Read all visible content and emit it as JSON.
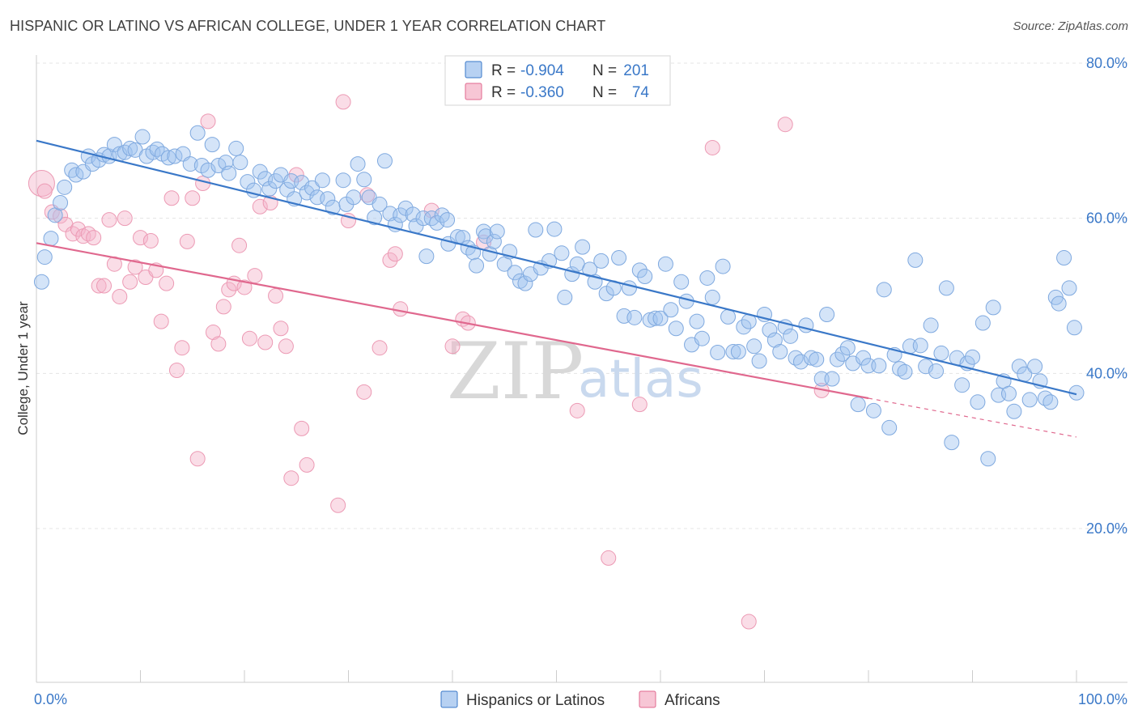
{
  "title": "HISPANIC OR LATINO VS AFRICAN COLLEGE, UNDER 1 YEAR CORRELATION CHART",
  "source": "Source: ZipAtlas.com",
  "watermark": {
    "part1": "ZIP",
    "part2": "atlas"
  },
  "legend": {
    "series1": {
      "r_label": "R =",
      "r_value": "-0.904",
      "n_label": "N =",
      "n_value": "201"
    },
    "series2": {
      "r_label": "R =",
      "r_value": "-0.360",
      "n_label": "N =",
      "n_value": "74"
    }
  },
  "bottom_legend": {
    "series1": "Hispanics or Latinos",
    "series2": "Africans"
  },
  "chart_data": {
    "type": "scatter",
    "title": "HISPANIC OR LATINO VS AFRICAN COLLEGE, UNDER 1 YEAR CORRELATION CHART",
    "xlabel": "",
    "ylabel": "College, Under 1 year",
    "xlim": [
      0,
      100
    ],
    "ylim": [
      0,
      82
    ],
    "x_tick_labels": [
      "0.0%",
      "100.0%"
    ],
    "y_ticks": [
      20,
      40,
      60,
      80
    ],
    "y_tick_labels": [
      "20.0%",
      "40.0%",
      "60.0%",
      "80.0%"
    ],
    "grid": true,
    "colors": {
      "series1": "#3a78c8",
      "series2": "#e0688e",
      "tick": "#3a78c8"
    },
    "series": [
      {
        "name": "Hispanics or Latinos",
        "color": "#3a78c8",
        "r": -0.904,
        "n": 201,
        "trend": {
          "x0": 0,
          "y0": 70.0,
          "x1": 100,
          "y1": 37.3
        },
        "points": [
          [
            0.5,
            51.8
          ],
          [
            0.8,
            55.0
          ],
          [
            1.4,
            57.4
          ],
          [
            1.8,
            60.4
          ],
          [
            2.3,
            62.0
          ],
          [
            2.7,
            64.0
          ],
          [
            3.4,
            66.2
          ],
          [
            3.8,
            65.6
          ],
          [
            4.5,
            66.0
          ],
          [
            5.0,
            68.0
          ],
          [
            5.4,
            67.0
          ],
          [
            6.0,
            67.5
          ],
          [
            6.5,
            68.2
          ],
          [
            7.0,
            68.0
          ],
          [
            7.5,
            69.5
          ],
          [
            8.0,
            68.3
          ],
          [
            8.5,
            68.5
          ],
          [
            9.0,
            69.0
          ],
          [
            9.5,
            68.8
          ],
          [
            10.2,
            70.5
          ],
          [
            10.6,
            68.0
          ],
          [
            11.2,
            68.5
          ],
          [
            11.6,
            68.9
          ],
          [
            12.1,
            68.3
          ],
          [
            12.7,
            67.8
          ],
          [
            13.3,
            68.0
          ],
          [
            14.1,
            68.3
          ],
          [
            14.8,
            67.0
          ],
          [
            15.5,
            71.0
          ],
          [
            15.9,
            66.8
          ],
          [
            16.5,
            66.2
          ],
          [
            16.9,
            69.5
          ],
          [
            17.5,
            66.8
          ],
          [
            18.2,
            67.2
          ],
          [
            18.5,
            65.8
          ],
          [
            19.2,
            69.0
          ],
          [
            19.6,
            67.2
          ],
          [
            20.3,
            64.7
          ],
          [
            20.9,
            63.6
          ],
          [
            21.5,
            66.0
          ],
          [
            22.0,
            65.1
          ],
          [
            22.4,
            63.8
          ],
          [
            23.0,
            64.8
          ],
          [
            23.5,
            65.6
          ],
          [
            24.1,
            63.7
          ],
          [
            24.5,
            64.8
          ],
          [
            24.8,
            62.5
          ],
          [
            25.5,
            64.6
          ],
          [
            26.0,
            63.3
          ],
          [
            26.5,
            63.9
          ],
          [
            27.0,
            62.7
          ],
          [
            27.5,
            64.9
          ],
          [
            28.0,
            62.5
          ],
          [
            28.5,
            61.4
          ],
          [
            29.5,
            64.9
          ],
          [
            29.8,
            61.8
          ],
          [
            30.5,
            62.7
          ],
          [
            30.9,
            67.0
          ],
          [
            31.5,
            65.0
          ],
          [
            32.0,
            62.7
          ],
          [
            32.5,
            60.1
          ],
          [
            33.0,
            61.8
          ],
          [
            33.5,
            67.4
          ],
          [
            34.0,
            60.6
          ],
          [
            34.5,
            59.2
          ],
          [
            35.0,
            60.4
          ],
          [
            35.5,
            61.3
          ],
          [
            36.2,
            60.5
          ],
          [
            36.5,
            59.0
          ],
          [
            37.2,
            60.0
          ],
          [
            38.0,
            60.0
          ],
          [
            37.5,
            55.1
          ],
          [
            38.5,
            59.4
          ],
          [
            39.0,
            60.4
          ],
          [
            39.5,
            59.8
          ],
          [
            39.6,
            56.7
          ],
          [
            40.5,
            57.6
          ],
          [
            41.0,
            57.5
          ],
          [
            41.5,
            56.2
          ],
          [
            42.0,
            55.6
          ],
          [
            42.3,
            53.9
          ],
          [
            43.0,
            58.3
          ],
          [
            43.2,
            57.7
          ],
          [
            43.6,
            55.4
          ],
          [
            44.0,
            57.0
          ],
          [
            44.3,
            58.3
          ],
          [
            45.0,
            54.1
          ],
          [
            45.5,
            55.7
          ],
          [
            46.0,
            53.0
          ],
          [
            46.5,
            51.9
          ],
          [
            47.0,
            51.6
          ],
          [
            47.5,
            52.8
          ],
          [
            48.0,
            58.5
          ],
          [
            48.5,
            53.6
          ],
          [
            49.3,
            54.5
          ],
          [
            49.8,
            58.6
          ],
          [
            50.5,
            55.5
          ],
          [
            50.8,
            49.8
          ],
          [
            51.5,
            52.8
          ],
          [
            52.0,
            54.1
          ],
          [
            52.5,
            56.3
          ],
          [
            53.2,
            53.4
          ],
          [
            53.7,
            51.8
          ],
          [
            54.3,
            54.5
          ],
          [
            54.8,
            50.3
          ],
          [
            55.5,
            51.0
          ],
          [
            56.0,
            54.9
          ],
          [
            56.5,
            47.4
          ],
          [
            57.0,
            51.0
          ],
          [
            57.5,
            47.2
          ],
          [
            58.0,
            53.3
          ],
          [
            58.5,
            52.5
          ],
          [
            59.0,
            46.9
          ],
          [
            59.5,
            47.1
          ],
          [
            60.0,
            47.1
          ],
          [
            60.5,
            54.1
          ],
          [
            61.0,
            48.2
          ],
          [
            61.5,
            45.8
          ],
          [
            62.0,
            51.8
          ],
          [
            62.5,
            49.3
          ],
          [
            63.0,
            43.7
          ],
          [
            63.5,
            46.7
          ],
          [
            64.0,
            44.5
          ],
          [
            64.5,
            52.3
          ],
          [
            65.0,
            49.8
          ],
          [
            65.5,
            42.7
          ],
          [
            66.0,
            53.8
          ],
          [
            66.5,
            47.3
          ],
          [
            67.0,
            42.8
          ],
          [
            67.5,
            42.8
          ],
          [
            68.0,
            46.0
          ],
          [
            68.5,
            46.7
          ],
          [
            69.0,
            43.5
          ],
          [
            69.5,
            41.6
          ],
          [
            70.0,
            47.6
          ],
          [
            70.5,
            45.6
          ],
          [
            71.0,
            44.3
          ],
          [
            71.5,
            42.8
          ],
          [
            72.0,
            46.0
          ],
          [
            72.5,
            44.8
          ],
          [
            73.0,
            42.0
          ],
          [
            73.5,
            41.5
          ],
          [
            74.0,
            46.2
          ],
          [
            74.5,
            42.0
          ],
          [
            75.0,
            41.8
          ],
          [
            75.5,
            39.3
          ],
          [
            76.0,
            47.6
          ],
          [
            76.5,
            39.3
          ],
          [
            77.0,
            41.8
          ],
          [
            77.5,
            42.5
          ],
          [
            78.0,
            43.3
          ],
          [
            78.5,
            41.3
          ],
          [
            79.0,
            36.0
          ],
          [
            79.5,
            42.0
          ],
          [
            80.0,
            41.0
          ],
          [
            80.5,
            35.2
          ],
          [
            81.0,
            41.0
          ],
          [
            81.5,
            50.8
          ],
          [
            82.0,
            33.0
          ],
          [
            82.5,
            42.4
          ],
          [
            83.0,
            40.6
          ],
          [
            83.5,
            40.2
          ],
          [
            84.0,
            43.5
          ],
          [
            84.5,
            54.6
          ],
          [
            85.0,
            43.6
          ],
          [
            85.5,
            40.9
          ],
          [
            86.0,
            46.2
          ],
          [
            86.5,
            40.3
          ],
          [
            87.0,
            42.6
          ],
          [
            87.5,
            51.0
          ],
          [
            88.0,
            31.1
          ],
          [
            88.5,
            42.0
          ],
          [
            89.0,
            38.5
          ],
          [
            89.5,
            41.3
          ],
          [
            90.0,
            42.1
          ],
          [
            90.5,
            36.3
          ],
          [
            91.0,
            46.5
          ],
          [
            91.5,
            29.0
          ],
          [
            92.0,
            48.5
          ],
          [
            92.5,
            37.2
          ],
          [
            93.0,
            39.0
          ],
          [
            93.5,
            37.4
          ],
          [
            94.0,
            35.1
          ],
          [
            94.5,
            40.9
          ],
          [
            95.0,
            39.9
          ],
          [
            95.5,
            36.6
          ],
          [
            96.0,
            40.9
          ],
          [
            96.5,
            39.0
          ],
          [
            97.0,
            36.8
          ],
          [
            97.5,
            36.3
          ],
          [
            98.0,
            49.8
          ],
          [
            98.3,
            49.0
          ],
          [
            98.8,
            54.9
          ],
          [
            99.3,
            51.0
          ],
          [
            99.8,
            45.9
          ],
          [
            100.0,
            37.5
          ]
        ]
      },
      {
        "name": "Africans",
        "color": "#e0688e",
        "r": -0.36,
        "n": 74,
        "trend": {
          "x0": 0,
          "y0": 56.8,
          "x1": 80,
          "y1": 36.8
        },
        "trend_extension": {
          "x0": 80,
          "y0": 36.8,
          "x1": 100,
          "y1": 31.8
        },
        "points": [
          [
            0.5,
            64.5
          ],
          [
            0.8,
            63.5
          ],
          [
            1.5,
            60.8
          ],
          [
            2.3,
            60.3
          ],
          [
            2.8,
            59.2
          ],
          [
            3.5,
            58.0
          ],
          [
            4.0,
            58.6
          ],
          [
            4.5,
            57.7
          ],
          [
            5.0,
            58.0
          ],
          [
            5.5,
            57.5
          ],
          [
            6.0,
            51.3
          ],
          [
            6.5,
            51.3
          ],
          [
            7.0,
            59.8
          ],
          [
            7.5,
            54.1
          ],
          [
            8.0,
            49.9
          ],
          [
            8.5,
            60.0
          ],
          [
            9.0,
            51.8
          ],
          [
            9.5,
            53.7
          ],
          [
            10.0,
            57.5
          ],
          [
            10.5,
            52.4
          ],
          [
            11.0,
            57.1
          ],
          [
            11.5,
            53.3
          ],
          [
            12.0,
            46.7
          ],
          [
            12.5,
            51.6
          ],
          [
            13.0,
            62.6
          ],
          [
            13.5,
            40.4
          ],
          [
            14.0,
            43.3
          ],
          [
            14.5,
            57.0
          ],
          [
            15.0,
            62.6
          ],
          [
            15.5,
            29.0
          ],
          [
            16.0,
            64.5
          ],
          [
            16.5,
            72.5
          ],
          [
            17.0,
            45.3
          ],
          [
            17.5,
            43.8
          ],
          [
            18.0,
            48.6
          ],
          [
            18.5,
            50.8
          ],
          [
            19.0,
            51.6
          ],
          [
            19.5,
            56.5
          ],
          [
            20.0,
            51.1
          ],
          [
            20.5,
            44.5
          ],
          [
            21.0,
            52.6
          ],
          [
            21.5,
            61.5
          ],
          [
            22.0,
            44.0
          ],
          [
            22.5,
            62.0
          ],
          [
            23.0,
            50.0
          ],
          [
            23.5,
            45.8
          ],
          [
            24.0,
            43.5
          ],
          [
            24.5,
            26.5
          ],
          [
            25.0,
            65.6
          ],
          [
            25.5,
            32.9
          ],
          [
            26.0,
            28.2
          ],
          [
            29.0,
            23.0
          ],
          [
            29.5,
            75.0
          ],
          [
            30.0,
            59.7
          ],
          [
            31.5,
            37.6
          ],
          [
            31.8,
            63.0
          ],
          [
            33.0,
            43.3
          ],
          [
            34.0,
            54.6
          ],
          [
            34.5,
            55.4
          ],
          [
            35.0,
            48.3
          ],
          [
            38.0,
            61.0
          ],
          [
            40.0,
            43.5
          ],
          [
            41.0,
            47.0
          ],
          [
            41.5,
            46.5
          ],
          [
            43.0,
            56.9
          ],
          [
            52.0,
            35.2
          ],
          [
            55.0,
            16.2
          ],
          [
            58.0,
            36.0
          ],
          [
            65.0,
            69.1
          ],
          [
            68.5,
            8.0
          ],
          [
            72.0,
            72.1
          ],
          [
            75.5,
            37.8
          ]
        ]
      }
    ]
  }
}
